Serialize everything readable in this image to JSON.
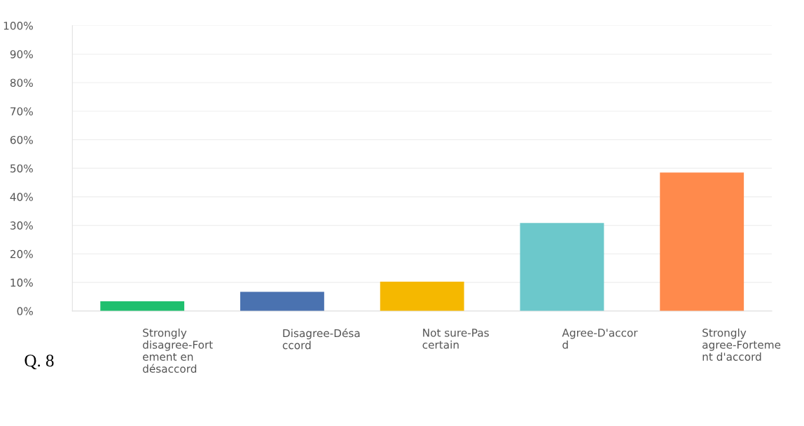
{
  "chart_data": {
    "type": "bar",
    "categories": [
      "Strongly\ndisagree-Fort\nement en\ndésaccord",
      "Disagree-Désa\nccord",
      "Not sure-Pas\ncertain",
      "Agree-D'accor\nd",
      "Strongly\nagree-Forteme\nnt d'accord"
    ],
    "values": [
      3.4,
      6.7,
      10.3,
      30.8,
      48.5
    ],
    "colors": [
      "#1fbf6e",
      "#4a72b0",
      "#f5b800",
      "#6cc8cb",
      "#ff8a4c"
    ],
    "ylim": [
      0,
      100
    ],
    "yticks": [
      {
        "value": 0,
        "label": "0%"
      },
      {
        "value": 10,
        "label": "10%"
      },
      {
        "value": 20,
        "label": "20%"
      },
      {
        "value": 30,
        "label": "30%"
      },
      {
        "value": 40,
        "label": "40%"
      },
      {
        "value": 50,
        "label": "50%"
      },
      {
        "value": 60,
        "label": "60%"
      },
      {
        "value": 70,
        "label": "70%"
      },
      {
        "value": 80,
        "label": "80%"
      },
      {
        "value": 90,
        "label": "90%"
      },
      {
        "value": 100,
        "label": "100%"
      }
    ],
    "grid": "y",
    "annotations": [
      "Q. 8"
    ]
  }
}
